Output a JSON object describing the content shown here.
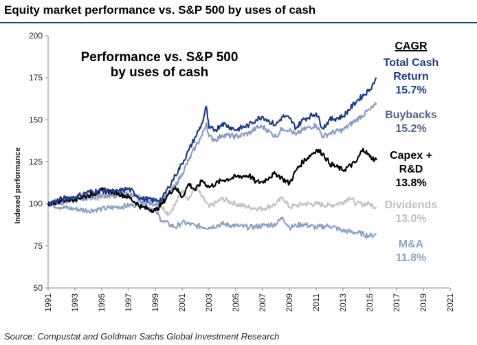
{
  "page": {
    "title": "Equity market performance vs. S&P 500 by uses of cash",
    "source": "Source: Compustat and Goldman Sachs Global Investment Research"
  },
  "chart_data": {
    "type": "line",
    "ylabel": "Indexed performance",
    "ylim": [
      50,
      200
    ],
    "yticks": [
      50,
      75,
      100,
      125,
      150,
      175,
      200
    ],
    "xlim": [
      1991,
      2021
    ],
    "xticks": [
      "1991",
      "1993",
      "1995",
      "1997",
      "1999",
      "2001",
      "2003",
      "2005",
      "2007",
      "2009",
      "2011",
      "2013",
      "2015",
      "2017",
      "2019",
      "2021"
    ],
    "inset_title": [
      "Performance vs. S&P 500",
      "by uses of cash"
    ],
    "legend_header": "CAGR",
    "legend": [
      {
        "lines": [
          "Total Cash",
          "Return",
          "15.7%"
        ],
        "color": "#1f3c8c"
      },
      {
        "lines": [
          "Buybacks",
          "15.2%"
        ],
        "color": "#4d638f"
      },
      {
        "lines": [
          "Capex +",
          "R&D",
          "13.8%"
        ],
        "color": "#000000"
      },
      {
        "lines": [
          "Dividends",
          "13.0%"
        ],
        "color": "#bfbfbf"
      },
      {
        "lines": [
          "M&A",
          "11.8%"
        ],
        "color": "#8ea3c6"
      }
    ],
    "series": [
      {
        "name": "Total Cash Return",
        "color": "#1f3c8c",
        "x": [
          1991,
          1992,
          1993,
          1994,
          1995,
          1996,
          1997,
          1998,
          1999,
          1999.5,
          2000,
          2000.5,
          2001,
          2001.5,
          2002,
          2002.5,
          2002.8,
          2003,
          2003.5,
          2004,
          2005,
          2006,
          2006.5,
          2007,
          2007.5,
          2008,
          2008.5,
          2009,
          2009.5,
          2010,
          2011,
          2011.5,
          2012,
          2013,
          2014,
          2015,
          2015.5
        ],
        "y": [
          100,
          103,
          104,
          107,
          108,
          107,
          109,
          103,
          102,
          103,
          110,
          117,
          124,
          132,
          140,
          148,
          158,
          145,
          144,
          148,
          144,
          147,
          150,
          152,
          149,
          147,
          152,
          151,
          145,
          150,
          154,
          145,
          150,
          152,
          161,
          168,
          175
        ]
      },
      {
        "name": "Buybacks",
        "color": "#8b9ec7",
        "x": [
          1991,
          1992,
          1993,
          1994,
          1995,
          1996,
          1997,
          1998,
          1999,
          1999.5,
          2000,
          2000.5,
          2001,
          2001.5,
          2002,
          2002.5,
          2002.8,
          2003,
          2003.5,
          2004,
          2005,
          2006,
          2006.5,
          2007,
          2007.5,
          2008,
          2008.5,
          2009,
          2009.5,
          2010,
          2011,
          2011.5,
          2012,
          2013,
          2014,
          2015,
          2015.5
        ],
        "y": [
          100,
          101,
          102,
          104,
          105,
          105,
          106,
          101,
          100,
          102,
          106,
          111,
          118,
          126,
          134,
          141,
          148,
          140,
          138,
          141,
          140,
          142,
          145,
          146,
          143,
          140,
          145,
          144,
          141,
          144,
          147,
          140,
          142,
          144,
          150,
          156,
          159
        ]
      },
      {
        "name": "Capex + R&D",
        "color": "#000000",
        "x": [
          1991,
          1992,
          1993,
          1994,
          1995,
          1996,
          1997,
          1998,
          1999,
          1999.5,
          2000,
          2000.5,
          2001,
          2001.5,
          2002,
          2002.5,
          2003,
          2004,
          2005,
          2006,
          2006.5,
          2007,
          2007.5,
          2008,
          2008.5,
          2009,
          2009.5,
          2010,
          2011,
          2011.5,
          2012,
          2013,
          2014,
          2014.5,
          2015,
          2015.5
        ],
        "y": [
          100,
          102,
          103,
          105,
          108,
          107,
          104,
          98,
          96,
          100,
          106,
          110,
          104,
          112,
          108,
          114,
          110,
          114,
          116,
          117,
          113,
          113,
          116,
          118,
          115,
          112,
          120,
          125,
          132,
          130,
          124,
          120,
          125,
          133,
          128,
          126
        ]
      },
      {
        "name": "Dividends",
        "color": "#c4c4c4",
        "x": [
          1991,
          1992,
          1993,
          1994,
          1995,
          1996,
          1997,
          1998,
          1999,
          1999.5,
          2000,
          2000.5,
          2001,
          2001.5,
          2002,
          2002.5,
          2003,
          2004,
          2005,
          2006,
          2007,
          2008,
          2008.5,
          2009,
          2009.5,
          2010,
          2011,
          2012,
          2013,
          2013.5,
          2014,
          2015,
          2015.5
        ],
        "y": [
          100,
          102,
          104,
          103,
          104,
          106,
          106,
          104,
          102,
          98,
          94,
          100,
          108,
          103,
          110,
          104,
          98,
          103,
          100,
          98,
          97,
          100,
          104,
          98,
          99,
          100,
          100,
          99,
          101,
          104,
          100,
          100,
          98
        ]
      },
      {
        "name": "M&A",
        "color": "#8ea3c6",
        "x": [
          1991,
          1992,
          1993,
          1994,
          1995,
          1996,
          1997,
          1998,
          1999,
          1999.5,
          2000,
          2000.5,
          2001,
          2002,
          2003,
          2004,
          2005,
          2006,
          2007,
          2008,
          2008.5,
          2009,
          2009.5,
          2010,
          2011,
          2012,
          2013,
          2014,
          2015,
          2015.5
        ],
        "y": [
          100,
          98,
          97,
          96,
          97,
          98,
          99,
          100,
          96,
          90,
          88,
          86,
          89,
          87,
          86,
          88,
          87,
          86,
          87,
          88,
          92,
          86,
          87,
          88,
          86,
          87,
          84,
          83,
          81,
          82
        ]
      }
    ]
  }
}
